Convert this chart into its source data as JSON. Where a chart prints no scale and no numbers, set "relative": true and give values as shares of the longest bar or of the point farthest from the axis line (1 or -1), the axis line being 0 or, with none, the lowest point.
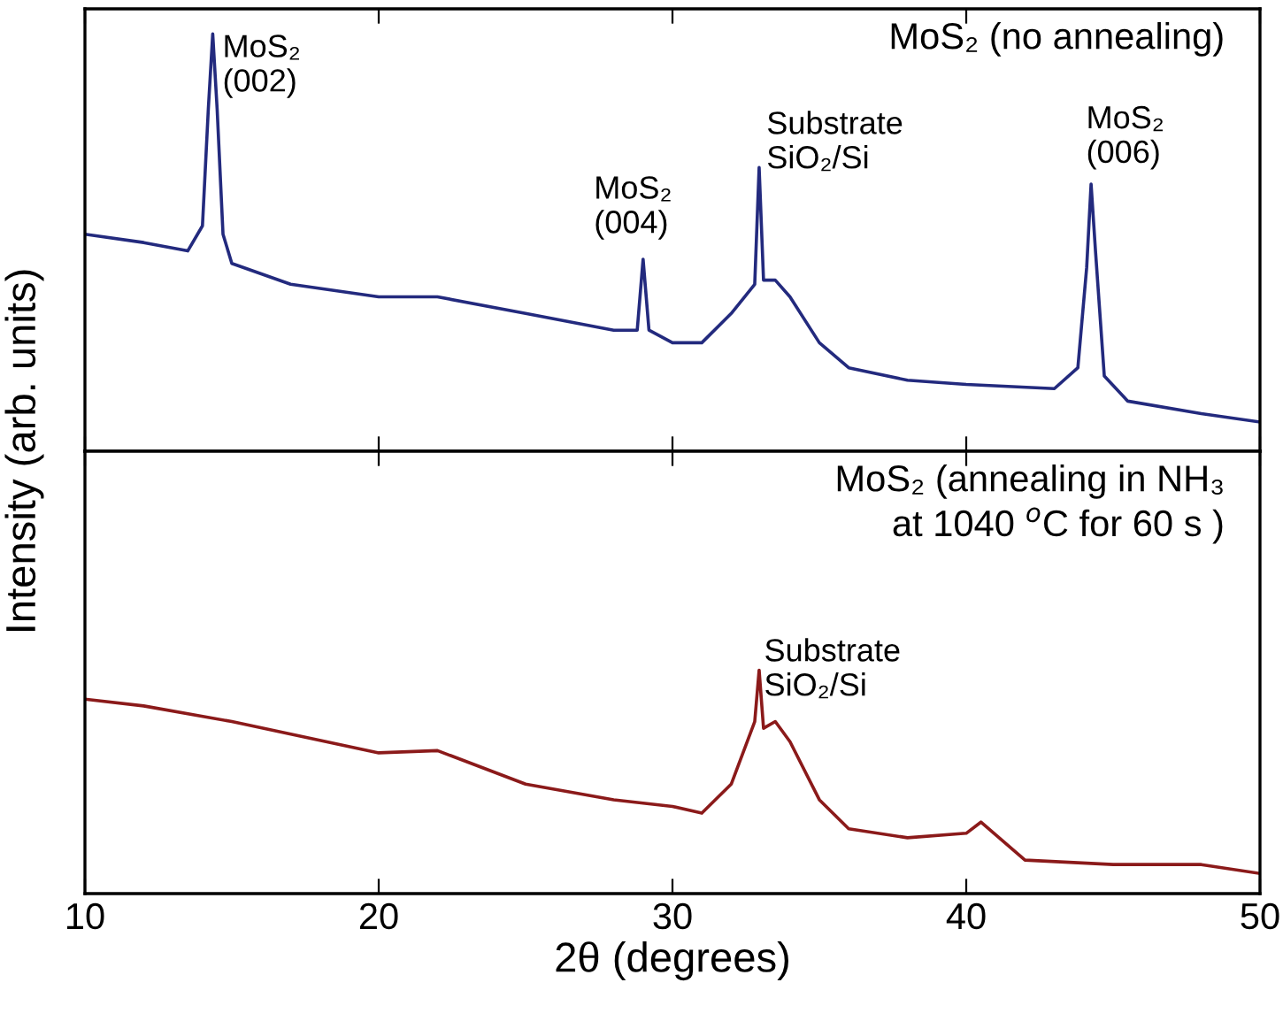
{
  "chart_data": [
    {
      "type": "line",
      "title": "MoS₂ (no annealing)",
      "ylabel": "Intensity (arb. units)",
      "relative": true,
      "legend": false,
      "grid": false,
      "tick_labels": false,
      "xlim": [
        10,
        50
      ],
      "xticks": [
        10,
        20,
        30,
        40,
        50
      ],
      "series": [
        {
          "color": "#232a7e",
          "x": [
            10,
            12,
            13.5,
            14.0,
            14.2,
            14.35,
            14.5,
            14.7,
            15,
            17,
            20,
            22,
            25,
            28,
            28.8,
            29.0,
            29.2,
            30,
            31,
            32,
            32.8,
            32.95,
            33.1,
            33.5,
            34,
            35,
            36,
            38,
            40,
            43,
            43.8,
            44.1,
            44.25,
            44.4,
            44.7,
            45.5,
            48,
            50
          ],
          "values": [
            0.52,
            0.5,
            0.48,
            0.54,
            0.82,
            1.0,
            0.82,
            0.52,
            0.45,
            0.4,
            0.37,
            0.37,
            0.33,
            0.29,
            0.29,
            0.46,
            0.29,
            0.26,
            0.26,
            0.33,
            0.4,
            0.68,
            0.41,
            0.41,
            0.37,
            0.26,
            0.2,
            0.17,
            0.16,
            0.15,
            0.2,
            0.44,
            0.64,
            0.48,
            0.18,
            0.12,
            0.09,
            0.07
          ]
        }
      ],
      "annotations": [
        {
          "text": "MoS₂\n(002)",
          "x": 14.35,
          "y": 1.0
        },
        {
          "text": "MoS₂\n(004)",
          "x": 29.0,
          "y": 0.46
        },
        {
          "text": "Substrate\nSiO₂/Si",
          "x": 32.95,
          "y": 0.68
        },
        {
          "text": "MoS₂\n(006)",
          "x": 44.25,
          "y": 0.64
        }
      ]
    },
    {
      "type": "line",
      "title": "MoS₂ (annealing in NH₃\nat 1040 $^{o}$C for 60 s )",
      "xlabel": "2θ (degrees)",
      "relative": true,
      "legend": false,
      "grid": false,
      "tick_labels": "x",
      "xlim": [
        10,
        50
      ],
      "xticks": [
        10,
        20,
        30,
        40,
        50
      ],
      "series": [
        {
          "color": "#8b1a1a",
          "x": [
            10,
            12,
            15,
            20,
            22,
            25,
            28,
            30,
            31,
            32,
            32.8,
            32.95,
            33.1,
            33.5,
            34,
            35,
            36,
            38,
            40,
            40.5,
            42,
            45,
            48,
            50
          ],
          "values": [
            0.87,
            0.84,
            0.77,
            0.63,
            0.64,
            0.49,
            0.42,
            0.39,
            0.36,
            0.49,
            0.77,
            1.0,
            0.74,
            0.77,
            0.68,
            0.42,
            0.29,
            0.25,
            0.27,
            0.32,
            0.15,
            0.13,
            0.13,
            0.09
          ]
        }
      ],
      "annotations": [
        {
          "text": "Substrate\nSiO₂/Si",
          "x": 32.95,
          "y": 1.0
        }
      ]
    }
  ]
}
